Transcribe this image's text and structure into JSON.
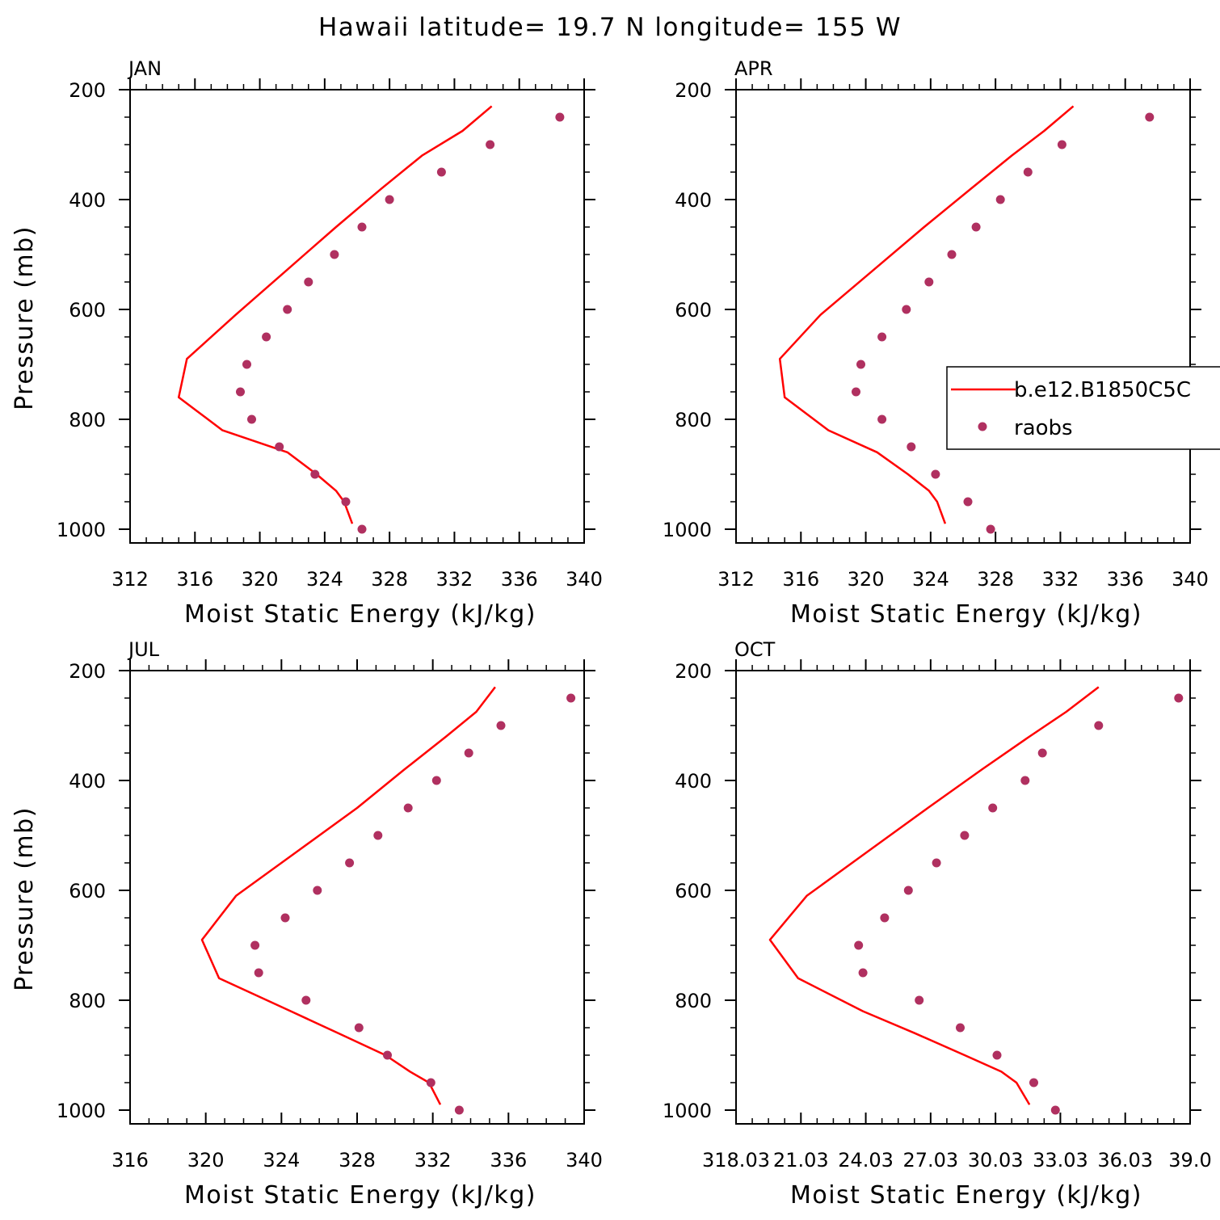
{
  "title": "Hawaii  latitude= 19.7 N longitude= 155 W",
  "colors": {
    "model_line": "#ff0000",
    "obs_points": "#b03060",
    "axes": "#000000",
    "background": "#ffffff"
  },
  "legend": {
    "placement": "right-middle of APR panel",
    "model_label": "b.e12.B1850C5C",
    "obs_label": "raobs"
  },
  "chart_data": [
    {
      "type": "line",
      "panel": "JAN",
      "xlabel": "Moist Static Energy (kJ/kg)",
      "ylabel": "Pressure (mb)",
      "xlim": [
        312,
        340
      ],
      "ylim": [
        1000,
        200
      ],
      "xticks": [
        "312",
        "316",
        "320",
        "324",
        "328",
        "332",
        "336",
        "340"
      ],
      "yticks": [
        "200",
        "400",
        "600",
        "800",
        "1000"
      ],
      "series": [
        {
          "name": "b.e12.B1850C5C",
          "style": "line",
          "pressure": [
            990,
            950,
            930,
            900,
            860,
            820,
            760,
            690,
            610,
            530,
            450,
            380,
            320,
            275,
            230
          ],
          "mse": [
            325.7,
            325.2,
            324.7,
            323.5,
            321.7,
            317.7,
            315.0,
            315.5,
            318.5,
            321.6,
            324.7,
            327.5,
            330.0,
            332.5,
            334.3
          ]
        },
        {
          "name": "raobs",
          "style": "points",
          "pressure": [
            250,
            300,
            350,
            400,
            450,
            500,
            550,
            600,
            650,
            700,
            750,
            800,
            850,
            900,
            950,
            1000
          ],
          "mse": [
            338.5,
            334.2,
            331.2,
            328.0,
            326.3,
            324.6,
            323.0,
            321.7,
            320.4,
            319.2,
            318.8,
            319.5,
            321.2,
            323.4,
            325.3,
            326.3
          ]
        }
      ]
    },
    {
      "type": "line",
      "panel": "APR",
      "xlabel": "Moist Static Energy (kJ/kg)",
      "ylabel": "",
      "xlim": [
        312,
        340
      ],
      "ylim": [
        1000,
        200
      ],
      "xticks": [
        "312",
        "316",
        "320",
        "324",
        "328",
        "332",
        "336",
        "340"
      ],
      "yticks": [
        "200",
        "400",
        "600",
        "800",
        "1000"
      ],
      "series": [
        {
          "name": "b.e12.B1850C5C",
          "style": "line",
          "pressure": [
            990,
            950,
            930,
            900,
            860,
            820,
            760,
            690,
            610,
            530,
            450,
            380,
            320,
            275,
            230
          ],
          "mse": [
            324.9,
            324.4,
            323.9,
            322.6,
            320.7,
            317.7,
            315.0,
            314.7,
            317.2,
            320.4,
            323.6,
            326.5,
            329.0,
            331.0,
            332.8
          ]
        },
        {
          "name": "raobs",
          "style": "points",
          "pressure": [
            250,
            300,
            350,
            400,
            450,
            500,
            550,
            600,
            650,
            700,
            750,
            800,
            850,
            900,
            950,
            1000
          ],
          "mse": [
            337.5,
            332.1,
            330.0,
            328.3,
            326.8,
            325.3,
            323.9,
            322.5,
            321.0,
            319.7,
            319.4,
            321.0,
            322.8,
            324.3,
            326.3,
            327.7
          ]
        }
      ]
    },
    {
      "type": "line",
      "panel": "JUL",
      "xlabel": "Moist Static Energy (kJ/kg)",
      "ylabel": "Pressure (mb)",
      "xlim": [
        316,
        340
      ],
      "ylim": [
        1000,
        200
      ],
      "xticks": [
        "316",
        "320",
        "324",
        "328",
        "332",
        "336",
        "340"
      ],
      "yticks": [
        "200",
        "400",
        "600",
        "800",
        "1000"
      ],
      "series": [
        {
          "name": "b.e12.B1850C5C",
          "style": "line",
          "pressure": [
            990,
            950,
            930,
            900,
            860,
            820,
            760,
            690,
            610,
            530,
            450,
            380,
            320,
            275,
            230
          ],
          "mse": [
            332.4,
            331.8,
            330.8,
            329.5,
            327.0,
            324.5,
            320.7,
            319.8,
            321.6,
            324.8,
            328.0,
            330.5,
            332.7,
            334.3,
            335.3
          ]
        },
        {
          "name": "raobs",
          "style": "points",
          "pressure": [
            250,
            300,
            350,
            400,
            450,
            500,
            550,
            600,
            650,
            700,
            750,
            800,
            850,
            900,
            950,
            1000
          ],
          "mse": [
            339.3,
            335.6,
            333.9,
            332.2,
            330.7,
            329.1,
            327.6,
            325.9,
            324.2,
            322.6,
            322.8,
            325.3,
            328.1,
            329.6,
            331.9,
            333.4
          ]
        }
      ]
    },
    {
      "type": "line",
      "panel": "OCT",
      "xlabel": "Moist Static Energy (kJ/kg)",
      "ylabel": "",
      "xlim": [
        318.03,
        339.03
      ],
      "ylim": [
        1000,
        200
      ],
      "xticks": [
        "318.03",
        "21.03",
        "24.03",
        "27.03",
        "30.03",
        "33.03",
        "36.03",
        "39.0"
      ],
      "yticks": [
        "200",
        "400",
        "600",
        "800",
        "1000"
      ],
      "series": [
        {
          "name": "b.e12.B1850C5C",
          "style": "line",
          "pressure": [
            990,
            950,
            930,
            900,
            860,
            820,
            760,
            690,
            610,
            530,
            450,
            380,
            320,
            275,
            230
          ],
          "mse": [
            331.6,
            331.0,
            330.3,
            328.6,
            326.3,
            323.9,
            320.9,
            319.6,
            321.3,
            324.1,
            326.9,
            329.4,
            331.6,
            333.3,
            334.8
          ]
        },
        {
          "name": "raobs",
          "style": "points",
          "pressure": [
            250,
            300,
            350,
            400,
            450,
            500,
            550,
            600,
            650,
            700,
            750,
            800,
            850,
            900,
            950,
            1000
          ],
          "mse": [
            338.5,
            334.8,
            332.2,
            331.4,
            329.9,
            328.6,
            327.3,
            326.0,
            324.9,
            323.7,
            323.9,
            326.5,
            328.4,
            330.1,
            331.8,
            332.8
          ]
        }
      ]
    }
  ]
}
